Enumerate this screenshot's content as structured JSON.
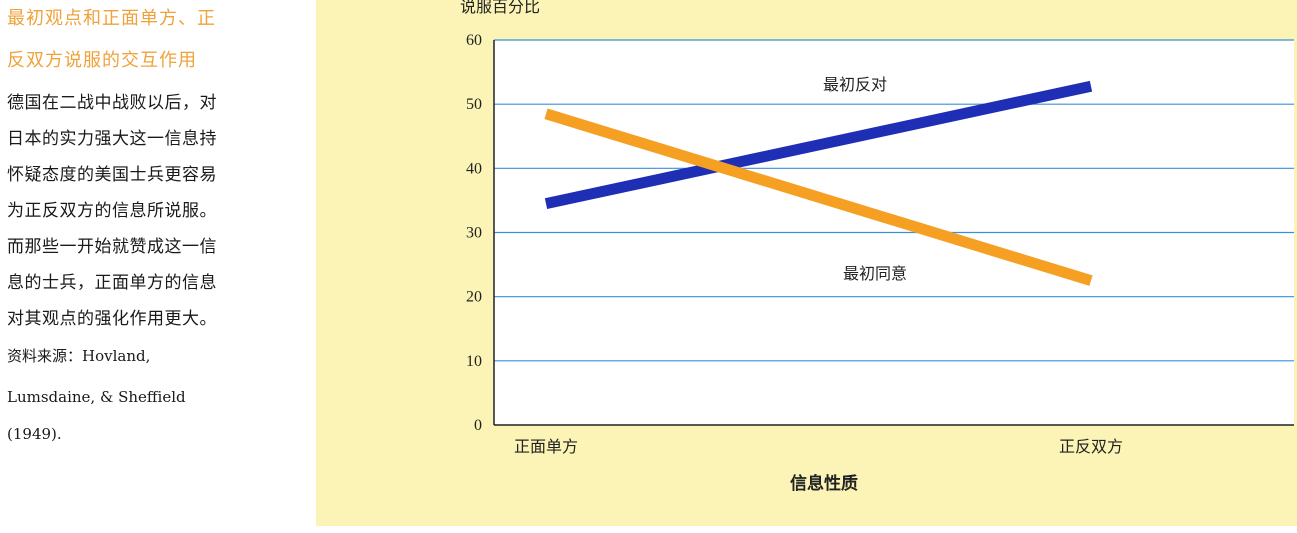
{
  "caption": {
    "title_lines": [
      "最初观点和正面单方、正",
      "反双方说服的交互作用"
    ],
    "body_lines": [
      "德国在二战中战败以后，对",
      "日本的实力强大这一信息持",
      "怀疑态度的美国士兵更容易",
      "为正反双方的信息所说服。",
      "而那些一开始就赞成这一信",
      "息的士兵，正面单方的信息",
      "对其观点的强化作用更大。"
    ],
    "source_lines": [
      "资料来源：Hovland,",
      "Lumsdaine, & Sheffield",
      "(1949)."
    ]
  },
  "chart_data": {
    "type": "line",
    "title": "",
    "ylabel": "说服百分比",
    "xlabel": "信息性质",
    "categories": [
      "正面单方",
      "正反双方"
    ],
    "ylim": [
      0,
      60
    ],
    "yticks": [
      0,
      10,
      20,
      30,
      40,
      50,
      60
    ],
    "grid": true,
    "series": [
      {
        "name": "最初反对",
        "values": [
          34.5,
          52.8
        ],
        "color": "#1f2fb5"
      },
      {
        "name": "最初同意",
        "values": [
          48.5,
          22.5
        ],
        "color": "#f5a023"
      }
    ],
    "background": "#fbf4b6",
    "plot_background": "#ffffff",
    "grid_color": "#3a8fd6"
  }
}
